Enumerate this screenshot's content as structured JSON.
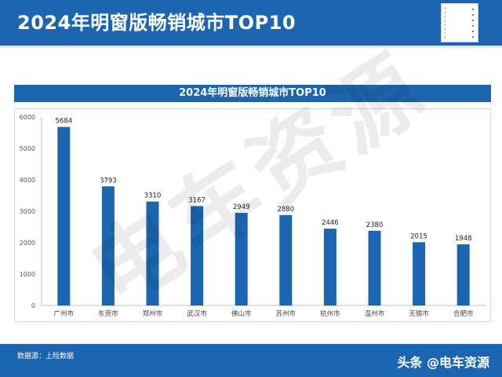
{
  "header": {
    "title": "2024年明窗版畅销城市TOP10"
  },
  "watermark": {
    "text": "电车资源"
  },
  "footer": {
    "source": "数据源：上险数据",
    "brand": "头条 @电车资源"
  },
  "colors": {
    "primary": "#1c65b0",
    "bar": "#1c65b0"
  },
  "chart_data": {
    "type": "bar",
    "title": "2024年明窗版畅销城市TOP10",
    "categories": [
      "广州市",
      "东莞市",
      "郑州市",
      "武汉市",
      "佛山市",
      "苏州市",
      "杭州市",
      "温州市",
      "无锡市",
      "合肥市"
    ],
    "values": [
      5684,
      3793,
      3310,
      3167,
      2949,
      2880,
      2446,
      2380,
      2015,
      1948
    ],
    "ylim": [
      0,
      6000
    ],
    "yticks": [
      0,
      1000,
      2000,
      3000,
      4000,
      5000,
      6000
    ],
    "grid": false,
    "legend": "none"
  }
}
